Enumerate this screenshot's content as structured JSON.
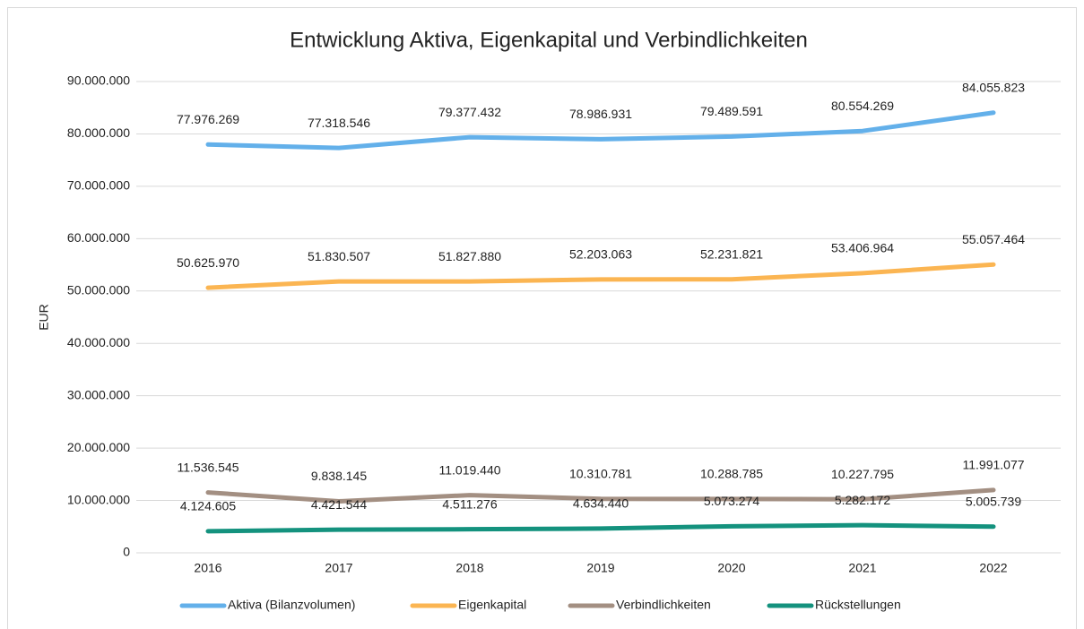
{
  "chart_data": {
    "type": "line",
    "title": "Entwicklung Aktiva, Eigenkapital und Verbindlichkeiten",
    "ylabel": "EUR",
    "categories": [
      "2016",
      "2017",
      "2018",
      "2019",
      "2020",
      "2021",
      "2022"
    ],
    "series": [
      {
        "name": "Aktiva (Bilanzvolumen)",
        "color": "#63b0ea",
        "values": [
          77976269,
          77318546,
          79377432,
          78986931,
          79489591,
          80554269,
          84055823
        ],
        "value_labels": [
          "77.976.269",
          "77.318.546",
          "79.377.432",
          "78.986.931",
          "79.489.591",
          "80.554.269",
          "84.055.823"
        ]
      },
      {
        "name": "Eigenkapital",
        "color": "#fbb552",
        "values": [
          50625970,
          51830507,
          51827880,
          52203063,
          52231821,
          53406964,
          55057464
        ],
        "value_labels": [
          "50.625.970",
          "51.830.507",
          "51.827.880",
          "52.203.063",
          "52.231.821",
          "53.406.964",
          "55.057.464"
        ]
      },
      {
        "name": "Verbindlichkeiten",
        "color": "#a38f82",
        "values": [
          11536545,
          9838145,
          11019440,
          10310781,
          10288785,
          10227795,
          11991077
        ],
        "value_labels": [
          "11.536.545",
          "9.838.145",
          "11.019.440",
          "10.310.781",
          "10.288.785",
          "10.227.795",
          "11.991.077"
        ]
      },
      {
        "name": "Rückstellungen",
        "color": "#14927e",
        "values": [
          4124605,
          4421544,
          4511276,
          4634440,
          5073274,
          5282172,
          5005739
        ],
        "value_labels": [
          "4.124.605",
          "4.421.544",
          "4.511.276",
          "4.634.440",
          "5.073.274",
          "5.282.172",
          "5.005.739"
        ]
      }
    ],
    "ylim": [
      0,
      90000000
    ],
    "yticks": [
      0,
      {
        "value": 10000000,
        "label": "10.000.000"
      },
      {
        "value": 20000000,
        "label": "20.000.000"
      },
      {
        "value": 30000000,
        "label": "30.000.000"
      },
      {
        "value": 40000000,
        "label": "40.000.000"
      },
      {
        "value": 50000000,
        "label": "50.000.000"
      },
      {
        "value": 60000000,
        "label": "60.000.000"
      },
      {
        "value": 70000000,
        "label": "70.000.000"
      },
      {
        "value": 80000000,
        "label": "80.000.000"
      },
      {
        "value": 90000000,
        "label": "90.000.000"
      }
    ],
    "grid": true,
    "legend": "bottom"
  }
}
